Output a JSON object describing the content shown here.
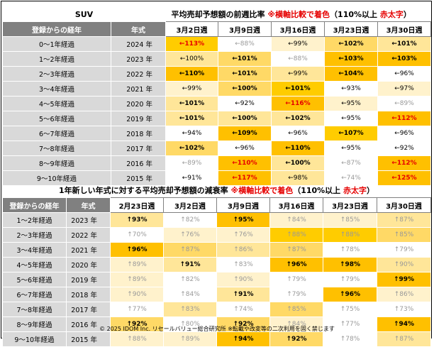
{
  "section1": {
    "suv_label": "SUV",
    "title_main": "平均売却予想額の前週比率",
    "title_note": "※横軸比較で着色",
    "title_paren_open": "（110%以上 ",
    "title_red": "赤太字",
    "title_paren_close": "）",
    "col_age": "登録からの経年",
    "col_year": "年式",
    "dates": [
      "3月2日週",
      "3月9日週",
      "3月16日週",
      "3月23日週",
      "3月30日週"
    ],
    "rows": [
      {
        "age": "0～1年経過",
        "year": "2024 年",
        "cells": [
          [
            "←113%",
            "#ffcc00",
            "hi"
          ],
          [
            "←88%",
            "#ffffff",
            "lt"
          ],
          [
            "←99%",
            "#fff2cc",
            ""
          ],
          [
            "←102%",
            "#ffd966",
            "b"
          ],
          [
            "←101%",
            "#ffe699",
            "b"
          ]
        ]
      },
      {
        "age": "1～2年経過",
        "year": "2023 年",
        "cells": [
          [
            "←100%",
            "#ffe699",
            ""
          ],
          [
            "←101%",
            "#ffd966",
            "b"
          ],
          [
            "←88%",
            "#ffffff",
            "lt"
          ],
          [
            "←103%",
            "#ffc000",
            "b"
          ],
          [
            "←103%",
            "#ffc000",
            "b"
          ]
        ]
      },
      {
        "age": "2～3年経過",
        "year": "2022 年",
        "cells": [
          [
            "←110%",
            "#ffc000",
            "b"
          ],
          [
            "←101%",
            "#ffd966",
            "b"
          ],
          [
            "←99%",
            "#ffe699",
            ""
          ],
          [
            "←104%",
            "#ffc000",
            "b"
          ],
          [
            "←96%",
            "#ffffff",
            ""
          ]
        ]
      },
      {
        "age": "3～4年経過",
        "year": "2021 年",
        "cells": [
          [
            "←99%",
            "#fff2cc",
            ""
          ],
          [
            "←100%",
            "#ffd966",
            "b"
          ],
          [
            "←101%",
            "#ffcc00",
            "b"
          ],
          [
            "←93%",
            "#ffffff",
            ""
          ],
          [
            "←97%",
            "#fff2cc",
            ""
          ]
        ]
      },
      {
        "age": "4～5年経過",
        "year": "2020 年",
        "cells": [
          [
            "←101%",
            "#ffe699",
            "b"
          ],
          [
            "←92%",
            "#ffffff",
            ""
          ],
          [
            "←116%",
            "#ffc000",
            "hi"
          ],
          [
            "←95%",
            "#fff2cc",
            ""
          ],
          [
            "←89%",
            "#ffffff",
            "lt"
          ]
        ]
      },
      {
        "age": "5～6年経過",
        "year": "2019 年",
        "cells": [
          [
            "←101%",
            "#ffe699",
            "b"
          ],
          [
            "←100%",
            "#ffe699",
            "b"
          ],
          [
            "←102%",
            "#ffe699",
            "b"
          ],
          [
            "←95%",
            "#ffffff",
            ""
          ],
          [
            "←112%",
            "#ffc000",
            "hi"
          ]
        ]
      },
      {
        "age": "6～7年経過",
        "year": "2018 年",
        "cells": [
          [
            "←94%",
            "#ffffff",
            ""
          ],
          [
            "←109%",
            "#ffc000",
            "b"
          ],
          [
            "←96%",
            "#ffffff",
            ""
          ],
          [
            "←107%",
            "#ffcc00",
            "b"
          ],
          [
            "←96%",
            "#ffffff",
            ""
          ]
        ]
      },
      {
        "age": "7～8年経過",
        "year": "2017 年",
        "cells": [
          [
            "←102%",
            "#ffd966",
            "b"
          ],
          [
            "←96%",
            "#ffffff",
            ""
          ],
          [
            "←110%",
            "#ffc000",
            "b"
          ],
          [
            "←95%",
            "#ffffff",
            ""
          ],
          [
            "←92%",
            "#ffffff",
            ""
          ]
        ]
      },
      {
        "age": "8～9年経過",
        "year": "2016 年",
        "cells": [
          [
            "←89%",
            "#ffffff",
            "lt"
          ],
          [
            "←110%",
            "#ffc000",
            "hi"
          ],
          [
            "←100%",
            "#ffe699",
            "b"
          ],
          [
            "←87%",
            "#ffffff",
            "lt"
          ],
          [
            "←112%",
            "#ffc000",
            "hi"
          ]
        ]
      },
      {
        "age": "9～10年経過",
        "year": "2015 年",
        "cells": [
          [
            "←91%",
            "#ffffff",
            ""
          ],
          [
            "←117%",
            "#ffc000",
            "hi"
          ],
          [
            "←98%",
            "#ffe699",
            ""
          ],
          [
            "←74%",
            "#ffffff",
            "lt"
          ],
          [
            "←125%",
            "#ffc000",
            "hi"
          ]
        ]
      }
    ]
  },
  "section2": {
    "title_main": "1年新しい年式に対する平均売却予想額の減衰率",
    "title_note": "※横軸比較で着色",
    "title_paren_open": "（110%以上 ",
    "title_red": "赤太字",
    "title_paren_close": "）",
    "col_age": "登録からの経年",
    "col_year": "年式",
    "dates": [
      "2月23日週",
      "3月2日週",
      "3月9日週",
      "3月16日週",
      "3月23日週",
      "3月30日週"
    ],
    "rows": [
      {
        "age": "1～2年経過",
        "year": "2023 年",
        "cells": [
          [
            "↑93%",
            "#ffe699",
            "b"
          ],
          [
            "↑82%",
            "#ffffff",
            "lt"
          ],
          [
            "↑95%",
            "#ffc000",
            "b"
          ],
          [
            "↑84%",
            "#fff2cc",
            "lt"
          ],
          [
            "↑85%",
            "#fff2cc",
            "lt"
          ],
          [
            "↑87%",
            "#ffe699",
            "lt"
          ]
        ]
      },
      {
        "age": "2～3年経過",
        "year": "2022 年",
        "cells": [
          [
            "↑70%",
            "#ffffff",
            "lt"
          ],
          [
            "↑76%",
            "#fff2cc",
            "lt"
          ],
          [
            "↑76%",
            "#fff2cc",
            "lt"
          ],
          [
            "↑88%",
            "#ffcc00",
            "lt"
          ],
          [
            "↑88%",
            "#ffcc00",
            "lt"
          ],
          [
            "↑85%",
            "#ffd966",
            "lt"
          ]
        ]
      },
      {
        "age": "3～4年経過",
        "year": "2021 年",
        "cells": [
          [
            "↑96%",
            "#ffc000",
            "b"
          ],
          [
            "↑87%",
            "#ffd966",
            "lt"
          ],
          [
            "↑86%",
            "#ffe699",
            "lt"
          ],
          [
            "↑87%",
            "#ffd966",
            "lt"
          ],
          [
            "↑78%",
            "#ffffff",
            "lt"
          ],
          [
            "↑79%",
            "#ffffff",
            "lt"
          ]
        ]
      },
      {
        "age": "4～5年経過",
        "year": "2020 年",
        "cells": [
          [
            "↑89%",
            "#fff2cc",
            "lt"
          ],
          [
            "↑91%",
            "#ffe699",
            "b"
          ],
          [
            "↑83%",
            "#ffffff",
            "lt"
          ],
          [
            "↑96%",
            "#ffc000",
            "b"
          ],
          [
            "↑98%",
            "#ffc000",
            "b"
          ],
          [
            "↑90%",
            "#ffe699",
            "lt"
          ]
        ]
      },
      {
        "age": "5～6年経過",
        "year": "2019 年",
        "cells": [
          [
            "↑89%",
            "#fff2cc",
            "lt"
          ],
          [
            "↑82%",
            "#ffffff",
            "lt"
          ],
          [
            "↑90%",
            "#fff2cc",
            "lt"
          ],
          [
            "↑79%",
            "#ffffff",
            "lt"
          ],
          [
            "↑79%",
            "#ffffff",
            "lt"
          ],
          [
            "↑99%",
            "#ffc000",
            "b"
          ]
        ]
      },
      {
        "age": "6～7年経過",
        "year": "2018 年",
        "cells": [
          [
            "↑90%",
            "#fff2cc",
            "lt"
          ],
          [
            "↑84%",
            "#ffffff",
            "lt"
          ],
          [
            "↑91%",
            "#ffe699",
            "b"
          ],
          [
            "↑79%",
            "#ffffff",
            "lt"
          ],
          [
            "↑96%",
            "#ffc000",
            "b"
          ],
          [
            "↑86%",
            "#fff2cc",
            "lt"
          ]
        ]
      },
      {
        "age": "7～8年経過",
        "year": "2017 年",
        "cells": [
          [
            "↑77%",
            "#ffffff",
            "lt"
          ],
          [
            "↑83%",
            "#ffe699",
            "lt"
          ],
          [
            "↑74%",
            "#ffffff",
            "lt"
          ],
          [
            "↑85%",
            "#ffd966",
            "lt"
          ],
          [
            "↑75%",
            "#ffffff",
            "lt"
          ],
          [
            "↑73%",
            "#ffffff",
            "lt"
          ]
        ]
      },
      {
        "age": "8～9年経過",
        "year": "2016 年",
        "cells": [
          [
            "↑92%",
            "#ffd966",
            "b"
          ],
          [
            "↑80%",
            "#ffffff",
            "lt"
          ],
          [
            "↑92%",
            "#ffd966",
            "b"
          ],
          [
            "↑84%",
            "#fff2cc",
            "lt"
          ],
          [
            "↑77%",
            "#ffffff",
            "lt"
          ],
          [
            "↑94%",
            "#ffc000",
            "b"
          ]
        ]
      },
      {
        "age": "9～10年経過",
        "year": "2015 年",
        "cells": [
          [
            "↑88%",
            "#fff2cc",
            "lt"
          ],
          [
            "↑89%",
            "#fff2cc",
            "lt"
          ],
          [
            "↑94%",
            "#ffc000",
            "b"
          ],
          [
            "↑92%",
            "#ffd966",
            "b"
          ],
          [
            "↑78%",
            "#ffffff",
            "lt"
          ],
          [
            "↑87%",
            "#ffe699",
            "lt"
          ]
        ]
      }
    ]
  },
  "footer": "© 2025 IDOM Inc. リセールバリュー総合研究所 ※転載や改変等の二次利用を固く禁じます"
}
